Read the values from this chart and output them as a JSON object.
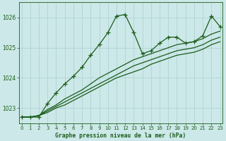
{
  "x": [
    0,
    1,
    2,
    3,
    4,
    5,
    6,
    7,
    8,
    9,
    10,
    11,
    12,
    13,
    14,
    15,
    16,
    17,
    18,
    19,
    20,
    21,
    22,
    23
  ],
  "line1": [
    1022.7,
    1022.7,
    1022.7,
    1023.15,
    1023.5,
    1023.8,
    1024.05,
    1024.35,
    1024.75,
    1025.1,
    1025.5,
    1026.05,
    1026.1,
    1025.5,
    1024.8,
    1024.9,
    1025.15,
    1025.35,
    1025.35,
    1025.15,
    1025.2,
    1025.4,
    1026.05,
    1025.7
  ],
  "line2": [
    1022.7,
    1022.7,
    1022.75,
    1022.95,
    1023.1,
    1023.3,
    1023.45,
    1023.6,
    1023.8,
    1024.0,
    1024.15,
    1024.3,
    1024.45,
    1024.6,
    1024.7,
    1024.8,
    1024.9,
    1025.0,
    1025.1,
    1025.15,
    1025.2,
    1025.3,
    1025.45,
    1025.55
  ],
  "line3": [
    1022.7,
    1022.7,
    1022.75,
    1022.9,
    1023.05,
    1023.2,
    1023.35,
    1023.5,
    1023.65,
    1023.8,
    1023.95,
    1024.1,
    1024.25,
    1024.4,
    1024.5,
    1024.6,
    1024.7,
    1024.8,
    1024.9,
    1024.95,
    1025.0,
    1025.1,
    1025.25,
    1025.35
  ],
  "line4": [
    1022.7,
    1022.7,
    1022.75,
    1022.85,
    1023.0,
    1023.1,
    1023.25,
    1023.4,
    1023.55,
    1023.7,
    1023.85,
    1024.0,
    1024.1,
    1024.2,
    1024.3,
    1024.45,
    1024.55,
    1024.65,
    1024.75,
    1024.8,
    1024.85,
    1024.95,
    1025.1,
    1025.2
  ],
  "bg_color": "#cce8e8",
  "grid_color": "#aad0d0",
  "line_color": "#1a5c1a",
  "ylabel_ticks": [
    1023,
    1024,
    1025,
    1026
  ],
  "xticks": [
    0,
    1,
    2,
    3,
    4,
    5,
    6,
    7,
    8,
    9,
    10,
    11,
    12,
    13,
    14,
    15,
    16,
    17,
    18,
    19,
    20,
    21,
    22,
    23
  ],
  "ylim": [
    1022.5,
    1026.5
  ],
  "xlim": [
    -0.3,
    23.3
  ],
  "xlabel": "Graphe pression niveau de la mer (hPa)"
}
